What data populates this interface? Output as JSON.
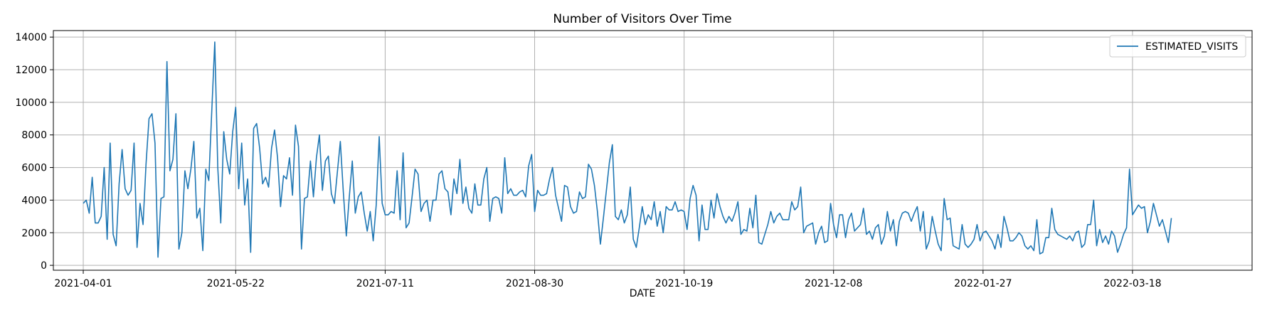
{
  "chart_data": {
    "type": "line",
    "title": "Number of Visitors Over Time",
    "xlabel": "DATE",
    "ylabel": "",
    "ylim": [
      -300,
      14400
    ],
    "yticks": [
      0,
      2000,
      4000,
      6000,
      8000,
      10000,
      12000,
      14000
    ],
    "xlim": [
      "2021-03-22",
      "2022-04-27"
    ],
    "xticks": [
      "2021-04-01",
      "2021-05-22",
      "2021-07-11",
      "2021-08-30",
      "2021-10-19",
      "2021-12-08",
      "2022-01-27",
      "2022-03-18"
    ],
    "grid": true,
    "legend_position": "top-right",
    "colors": {
      "line": "#1f77b4",
      "grid": "#b0b0b0",
      "axis": "#000000"
    },
    "series": [
      {
        "name": "ESTIMATED_VISITS",
        "x_start": "2021-04-01",
        "x_step_days": 1,
        "values": [
          3800,
          4000,
          3200,
          5400,
          2600,
          2600,
          3000,
          6000,
          1600,
          7500,
          1900,
          1200,
          5000,
          7100,
          4700,
          4300,
          4600,
          7500,
          1100,
          3800,
          2500,
          6200,
          9000,
          9300,
          7500,
          500,
          4100,
          4200,
          12500,
          5800,
          6500,
          9300,
          1000,
          2000,
          5800,
          4700,
          5900,
          7600,
          2900,
          3500,
          900,
          5900,
          5200,
          9500,
          13700,
          6000,
          2600,
          8200,
          6500,
          5600,
          8200,
          9700,
          4700,
          7500,
          3700,
          5300,
          800,
          8400,
          8700,
          7200,
          5000,
          5400,
          4800,
          7200,
          8300,
          6600,
          3600,
          5500,
          5300,
          6600,
          4300,
          8600,
          7300,
          1000,
          4100,
          4200,
          6400,
          4200,
          6600,
          8000,
          4600,
          6400,
          6700,
          4400,
          3800,
          5700,
          7600,
          4500,
          1800,
          4200,
          6400,
          3200,
          4200,
          4500,
          3200,
          2100,
          3300,
          1500,
          3700,
          7900,
          3800,
          3100,
          3100,
          3300,
          3200,
          5800,
          2800,
          6900,
          2300,
          2600,
          4200,
          5900,
          5600,
          3300,
          3800,
          4000,
          2700,
          4000,
          4000,
          5600,
          5800,
          4700,
          4500,
          3100,
          5300,
          4400,
          6500,
          3800,
          4800,
          3500,
          3200,
          5000,
          3700,
          3700,
          5300,
          6000,
          2700,
          4100,
          4200,
          4100,
          3200,
          6600,
          4400,
          4700,
          4300,
          4300,
          4500,
          4600,
          4200,
          6100,
          6800,
          3300,
          4600,
          4300,
          4300,
          4400,
          5300,
          6000,
          4300,
          3500,
          2700,
          4900,
          4800,
          3600,
          3200,
          3300,
          4500,
          4100,
          4200,
          6200,
          5900,
          4900,
          3300,
          1300,
          2900,
          4600,
          6300,
          7400,
          3000,
          2800,
          3400,
          2600,
          3100,
          4800,
          1600,
          1100,
          2300,
          3600,
          2500,
          3100,
          2800,
          3900,
          2400,
          3300,
          2000,
          3600,
          3400,
          3400,
          3900,
          3300,
          3400,
          3300,
          2200,
          4100,
          4900,
          4300,
          1500,
          3700,
          2200,
          2200,
          4000,
          2900,
          4400,
          3600,
          3000,
          2600,
          3000,
          2700,
          3200,
          3900,
          1900,
          2200,
          2100,
          3500,
          2300,
          4300,
          1400,
          1300,
          1900,
          2500,
          3300,
          2600,
          3000,
          3200,
          2800,
          2800,
          2800,
          3900,
          3400,
          3600,
          4800,
          2000,
          2400,
          2500,
          2600,
          1300,
          2000,
          2400,
          1400,
          1500,
          3800,
          2500,
          1700,
          3100,
          3100,
          1700,
          2800,
          3200,
          2100,
          2300,
          2500,
          3500,
          1900,
          2100,
          1600,
          2300,
          2500,
          1300,
          1800,
          3300,
          2100,
          2800,
          1200,
          2700,
          3200,
          3300,
          3200,
          2700,
          3200,
          3600,
          2100,
          3300,
          1000,
          1500,
          3000,
          2100,
          1300,
          900,
          4100,
          2800,
          2900,
          1200,
          1100,
          1000,
          2500,
          1300,
          1100,
          1300,
          1600,
          2500,
          1500,
          2000,
          2100,
          1800,
          1500,
          1000,
          1900,
          1100,
          3000,
          2300,
          1500,
          1500,
          1700,
          2000,
          1800,
          1200,
          1000,
          1200,
          900,
          2800,
          700,
          800,
          1700,
          1700,
          3500,
          2200,
          1900,
          1800,
          1700,
          1600,
          1800,
          1500,
          2000,
          2100,
          1100,
          1300,
          2500,
          2500,
          4000,
          1200,
          2200,
          1400,
          1800,
          1300,
          2100,
          1800,
          800,
          1300,
          1900,
          2300,
          5900,
          3100,
          3400,
          3700,
          3500,
          3600,
          2000,
          2700,
          3800,
          3100,
          2400,
          2800,
          2100,
          1400,
          2900
        ]
      }
    ]
  }
}
